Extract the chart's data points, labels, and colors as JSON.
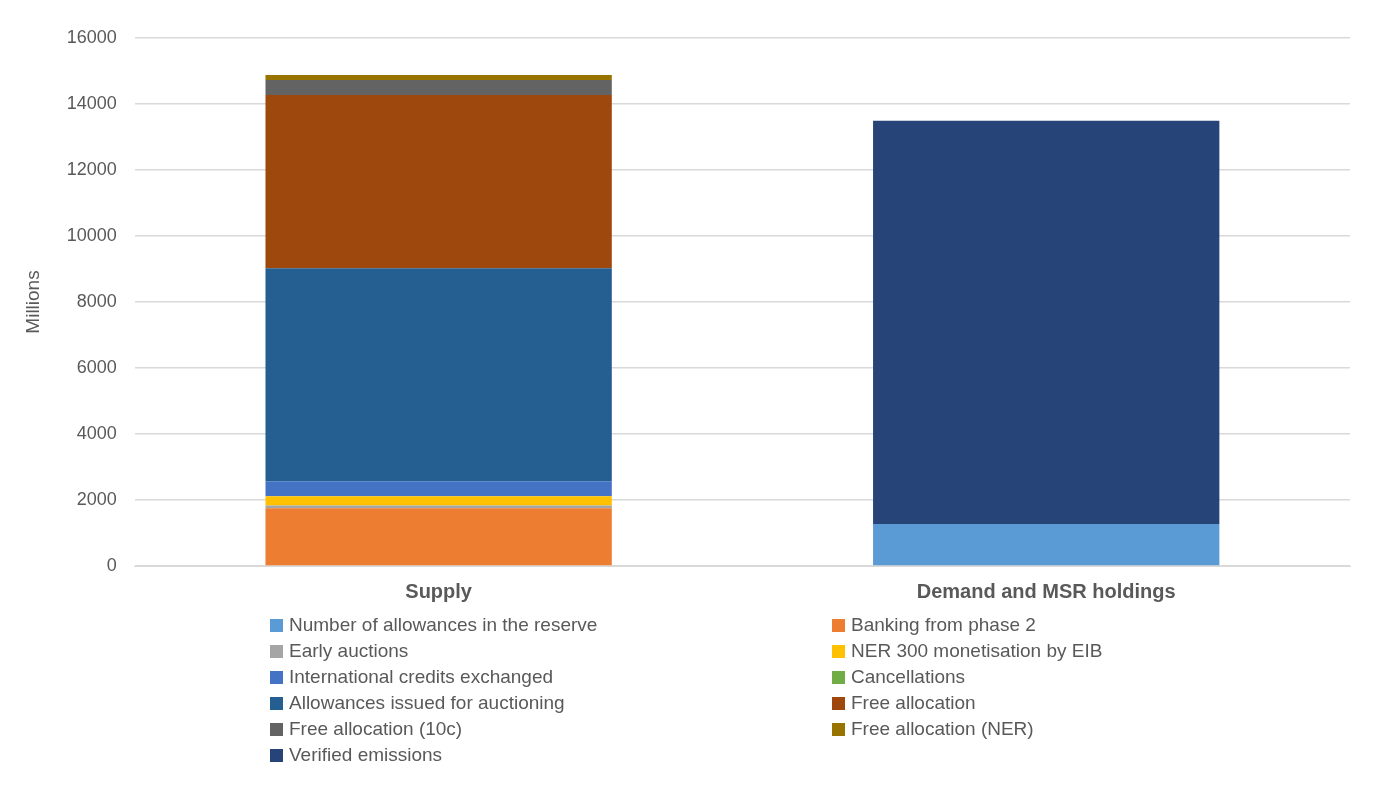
{
  "chart_data": {
    "type": "bar",
    "stacked": true,
    "ylabel": "Millions",
    "categories": [
      "Supply",
      "Demand and MSR holdings"
    ],
    "series": [
      {
        "name": "Number of allowances in the reserve",
        "color": "#5b9bd5",
        "values": [
          null,
          1270
        ]
      },
      {
        "name": "Banking from phase 2",
        "color": "#ed7d31",
        "values": [
          1750,
          null
        ]
      },
      {
        "name": "Early auctions",
        "color": "#a5a5a5",
        "values": [
          80,
          null
        ]
      },
      {
        "name": "NER 300 monetisation by EIB",
        "color": "#ffc000",
        "values": [
          280,
          null
        ]
      },
      {
        "name": "International credits exchanged",
        "color": "#4472c4",
        "values": [
          460,
          null
        ]
      },
      {
        "name": "Cancellations",
        "color": "#70ad47",
        "values": [
          null,
          null
        ]
      },
      {
        "name": "Allowances issued for auctioning",
        "color": "#255e91",
        "values": [
          6450,
          null
        ]
      },
      {
        "name": "Free allocation",
        "color": "#9e480e",
        "values": [
          5250,
          null
        ]
      },
      {
        "name": "Free allocation (10c)",
        "color": "#636363",
        "values": [
          460,
          null
        ]
      },
      {
        "name": "Free allocation (NER)",
        "color": "#997300",
        "values": [
          150,
          null
        ]
      },
      {
        "name": "Verified emissions",
        "color": "#264478",
        "values": [
          null,
          12220
        ]
      }
    ],
    "ylim": [
      0,
      16000
    ],
    "yticks": [
      0,
      2000,
      4000,
      6000,
      8000,
      10000,
      12000,
      14000,
      16000
    ],
    "grid": "y",
    "legend": "bottom"
  }
}
